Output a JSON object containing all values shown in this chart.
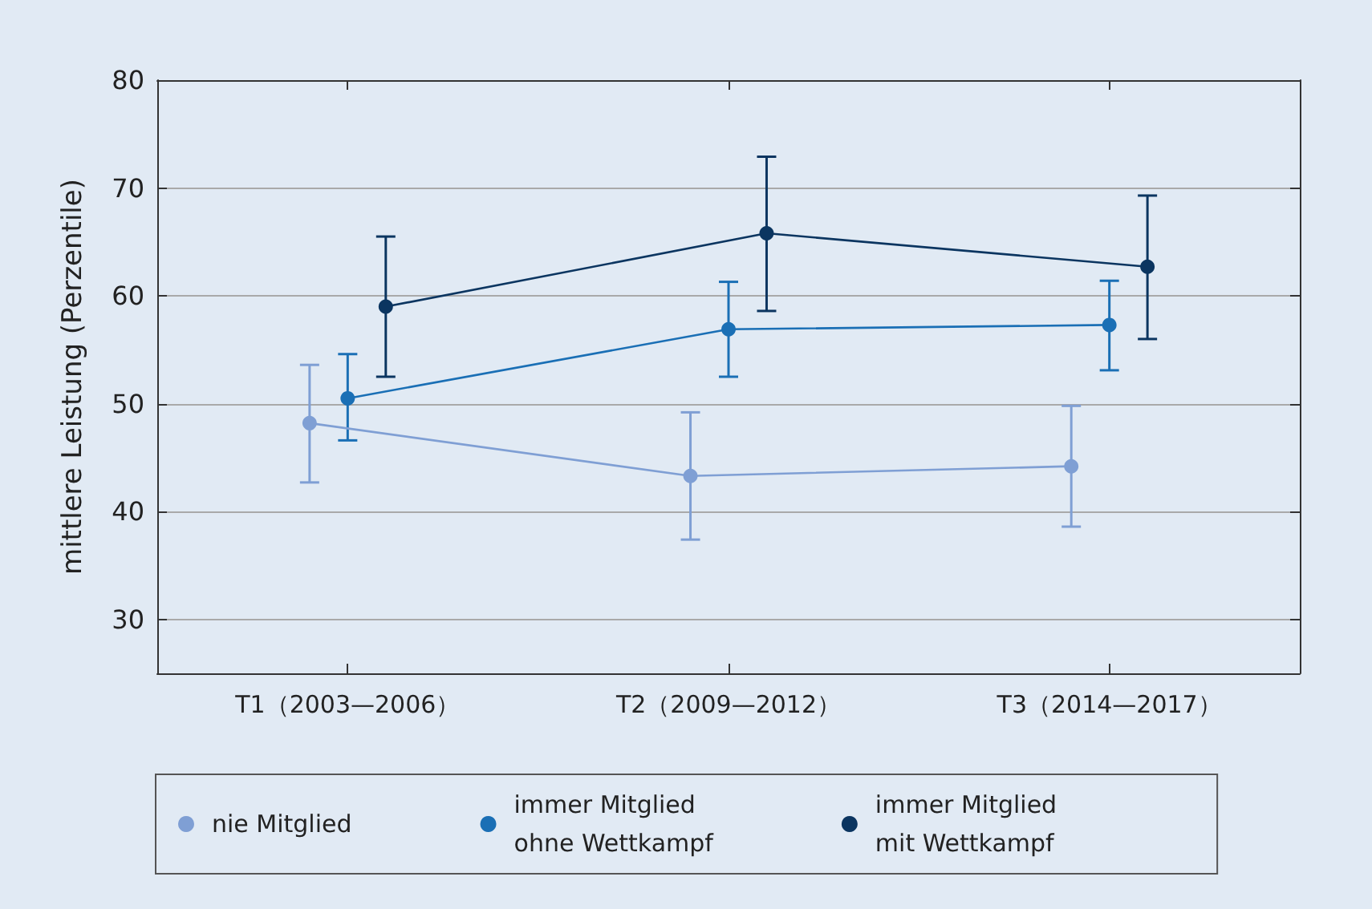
{
  "chart_data": {
    "type": "line",
    "ylabel": "mittlere Leistung (Perzentile)",
    "categories": [
      "T1（2003—2006）",
      "T2（2009—2012）",
      "T3（2014—2017）"
    ],
    "series": [
      {
        "name": "nie Mitglied",
        "color": "#7f9fd4",
        "values": [
          48.2,
          43.3,
          44.2
        ],
        "errors": [
          [
            42.7,
            53.6
          ],
          [
            37.4,
            49.2
          ],
          [
            38.6,
            49.8
          ]
        ]
      },
      {
        "name": "immer Mitglied\nohne Wettkampf",
        "color": "#1a6fb5",
        "values": [
          50.5,
          56.9,
          57.3
        ],
        "errors": [
          [
            46.6,
            54.6
          ],
          [
            52.5,
            61.3
          ],
          [
            53.1,
            61.4
          ]
        ]
      },
      {
        "name": "immer Mitglied\nmit Wettkampf",
        "color": "#0b3560",
        "values": [
          59.0,
          65.8,
          62.7
        ],
        "errors": [
          [
            52.5,
            65.5
          ],
          [
            58.6,
            72.9
          ],
          [
            56.0,
            69.3
          ]
        ]
      }
    ],
    "ylim": [
      25,
      80
    ],
    "yticks": [
      30,
      40,
      50,
      60,
      70,
      80
    ],
    "grid": "y",
    "legend": "bottom",
    "marker": "circle",
    "line_style": "solid"
  }
}
